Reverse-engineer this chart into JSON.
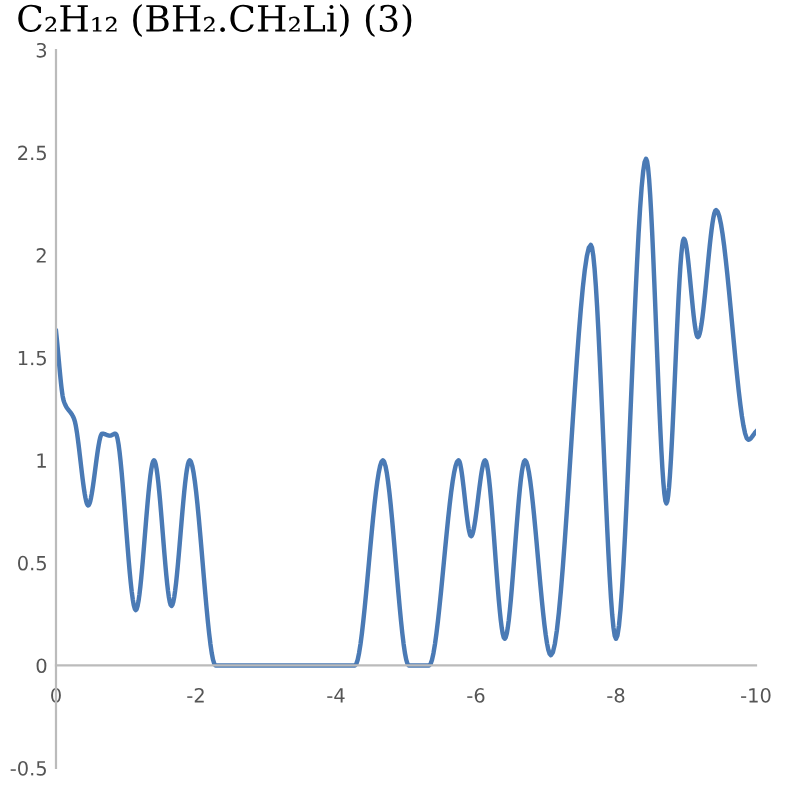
{
  "chart_data": {
    "type": "line",
    "title": "C₂H₁₂ (BH₂.CH₂Li) (3)",
    "x": [
      0,
      -0.11,
      -0.26,
      -0.46,
      -0.66,
      -0.77,
      -0.85,
      -1.14,
      -1.4,
      -1.65,
      -1.91,
      -2.28,
      -4.27,
      -4.67,
      -5.04,
      -5.33,
      -5.75,
      -5.93,
      -6.13,
      -6.41,
      -6.7,
      -7.07,
      -7.64,
      -8.0,
      -8.43,
      -8.72,
      -8.97,
      -9.17,
      -9.43,
      -9.89,
      -10
    ],
    "series": [
      {
        "color": "#4a7ab5",
        "values": [
          1.63,
          1.29,
          1.2,
          0.78,
          1.13,
          1.12,
          1.13,
          0.27,
          1.0,
          0.29,
          1.0,
          0.0,
          0.0,
          1.0,
          0.0,
          0.0,
          1.0,
          0.63,
          1.0,
          0.13,
          1.0,
          0.05,
          2.05,
          0.13,
          2.47,
          0.79,
          2.08,
          1.6,
          2.22,
          1.1,
          1.14
        ]
      }
    ],
    "xlim": [
      0,
      -10
    ],
    "xticks": [
      0,
      -2,
      -4,
      -6,
      -8,
      -10
    ],
    "ylim": [
      -0.5,
      3
    ],
    "yticks": [
      -0.5,
      0,
      0.5,
      1,
      1.5,
      2,
      2.5,
      3
    ],
    "grid": false,
    "legend": false,
    "marker": "none",
    "line_style": "solid"
  }
}
